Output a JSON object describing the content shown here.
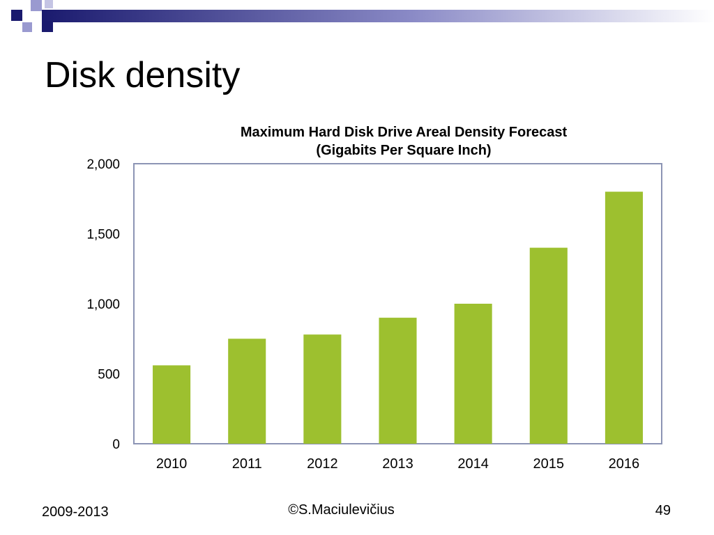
{
  "slide": {
    "title": "Disk density",
    "footer_left": "2009-2013",
    "footer_center": "©S.Maciulevičius",
    "page_number": "49"
  },
  "colors": {
    "decor_dark": "#1a1a6e",
    "decor_light": "#8a8ac6",
    "bar": "#9dc02f",
    "plot_border": "#8c94b4"
  },
  "chart_data": {
    "type": "bar",
    "title": "Maximum Hard Disk Drive Areal Density Forecast",
    "subtitle": "(Gigabits Per Square Inch)",
    "categories": [
      "2010",
      "2011",
      "2012",
      "2013",
      "2014",
      "2015",
      "2016"
    ],
    "values": [
      560,
      750,
      780,
      900,
      1000,
      1400,
      1800
    ],
    "yticks": [
      "0",
      "500",
      "1,000",
      "1,500",
      "2,000"
    ],
    "ylim": [
      0,
      2000
    ],
    "grid": false,
    "legend": "none"
  }
}
